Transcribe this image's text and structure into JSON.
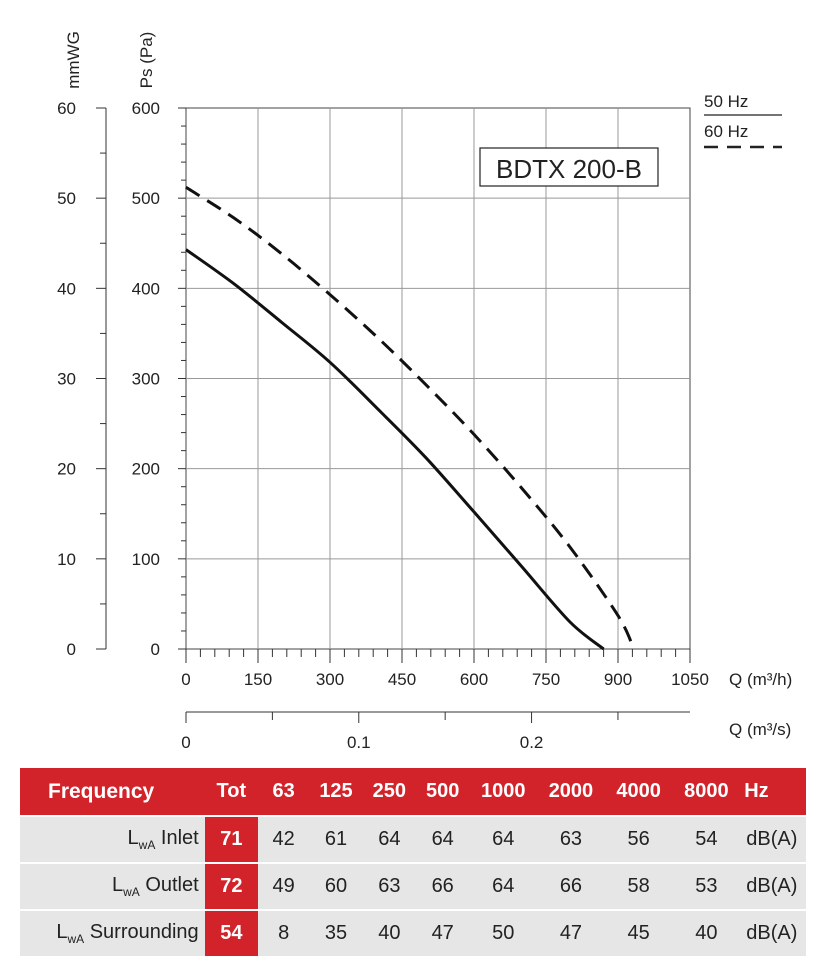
{
  "chart_data": {
    "type": "line",
    "title": "BDTX 200-B",
    "x": {
      "label": "Q (m³/h)",
      "range": [
        0,
        1050
      ],
      "ticks": [
        0,
        150,
        300,
        450,
        600,
        750,
        900,
        1050
      ]
    },
    "x2": {
      "label": "Q (m³/s)",
      "range": [
        0,
        0.2917
      ],
      "ticks": [
        0,
        0.1,
        0.2
      ],
      "tick_labels": [
        "0",
        "0.1",
        "0.2"
      ]
    },
    "y": {
      "label": "Ps (Pa)",
      "range": [
        0,
        600
      ],
      "ticks": [
        0,
        100,
        200,
        300,
        400,
        500,
        600
      ]
    },
    "y2": {
      "label": "mmWG",
      "range": [
        0,
        60
      ],
      "ticks": [
        0,
        10,
        20,
        30,
        40,
        50,
        60
      ]
    },
    "grid": true,
    "legend": {
      "placement": "top-right",
      "entries": [
        {
          "name": "50 Hz",
          "style": "solid"
        },
        {
          "name": "60 Hz",
          "style": "dashed"
        }
      ]
    },
    "series": [
      {
        "name": "50 Hz",
        "style": "solid",
        "x": [
          0,
          100,
          200,
          300,
          400,
          500,
          600,
          700,
          800,
          870
        ],
        "y": [
          443,
          405,
          362,
          318,
          266,
          212,
          152,
          91,
          30,
          0
        ]
      },
      {
        "name": "60 Hz",
        "style": "dashed",
        "x": [
          0,
          100,
          200,
          300,
          400,
          500,
          600,
          700,
          800,
          900,
          933
        ],
        "y": [
          512,
          478,
          438,
          393,
          345,
          293,
          238,
          178,
          113,
          37,
          0
        ]
      }
    ]
  },
  "table": {
    "headers": [
      "Frequency",
      "Tot",
      "63",
      "125",
      "250",
      "500",
      "1000",
      "2000",
      "4000",
      "8000",
      "Hz"
    ],
    "rows": [
      {
        "label_main": "L",
        "label_sub": "wA",
        "label_rest": " Inlet",
        "tot": "71",
        "values": [
          "42",
          "61",
          "64",
          "64",
          "64",
          "63",
          "56",
          "54"
        ],
        "unit": "dB(A)"
      },
      {
        "label_main": "L",
        "label_sub": "wA",
        "label_rest": " Outlet",
        "tot": "72",
        "values": [
          "49",
          "60",
          "63",
          "66",
          "64",
          "66",
          "58",
          "53"
        ],
        "unit": "dB(A)"
      },
      {
        "label_main": "L",
        "label_sub": "wA",
        "label_rest": " Surrounding",
        "tot": "54",
        "values": [
          "8",
          "35",
          "40",
          "47",
          "50",
          "47",
          "45",
          "40"
        ],
        "unit": "dB(A)"
      }
    ]
  }
}
